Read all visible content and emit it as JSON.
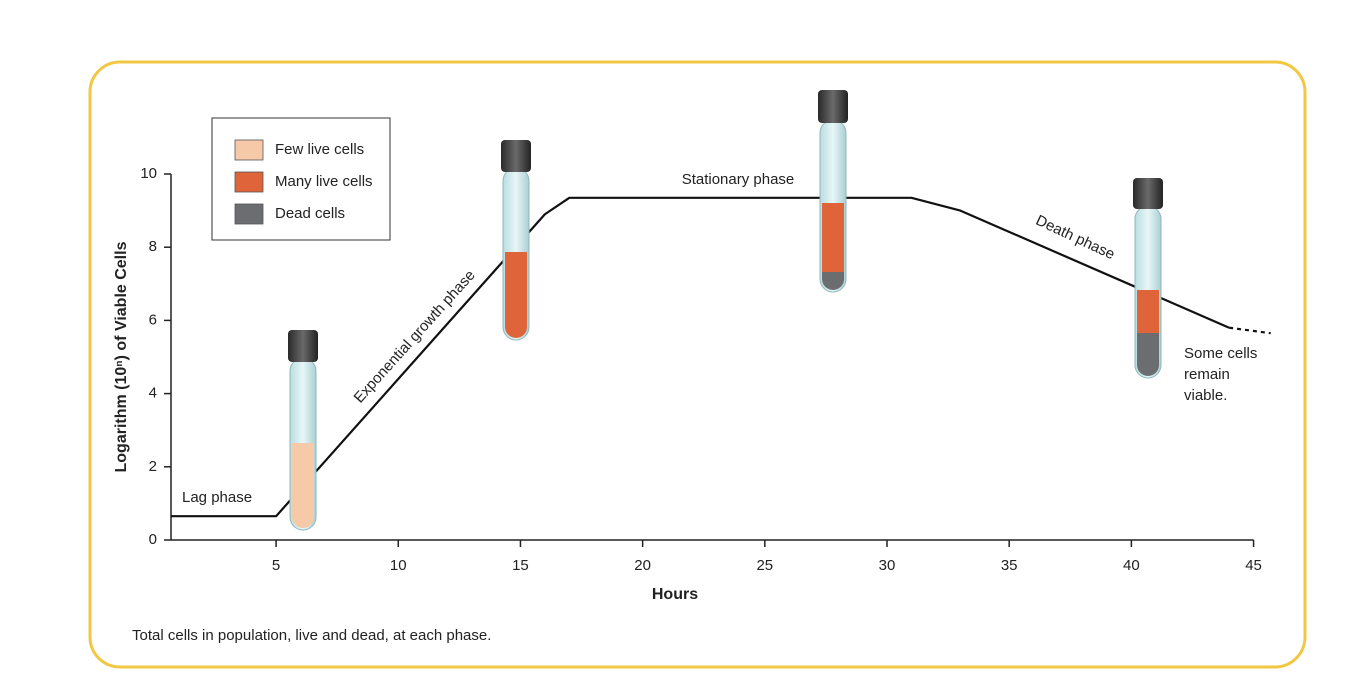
{
  "chart_data": {
    "type": "line",
    "x_label": "Hours",
    "y_label": "Logarithm (10ⁿ) of Viable Cells",
    "footnote": "Total cells in population, live and dead, at each phase.",
    "x": [
      0.7,
      5,
      16,
      17,
      31,
      33,
      44
    ],
    "values": [
      0.65,
      0.65,
      8.9,
      9.35,
      9.35,
      9.0,
      5.8
    ],
    "color": "#111111",
    "extension": {
      "x": [
        44,
        45.7
      ],
      "values": [
        5.8,
        5.65
      ],
      "style": "dashed"
    },
    "xlim": [
      0.7,
      46
    ],
    "ylim": [
      0,
      10
    ],
    "xticks": [
      5,
      10,
      15,
      20,
      25,
      30,
      35,
      40,
      45
    ],
    "yticks": [
      0,
      2,
      4,
      6,
      8,
      10
    ],
    "legend": [
      {
        "name": "Few live cells",
        "color": "#f6c9a9"
      },
      {
        "name": "Many live cells",
        "color": "#e0643a"
      },
      {
        "name": "Dead cells",
        "color": "#6c6d70"
      }
    ],
    "annotations": {
      "lag": "Lag phase",
      "exponential": "Exponential growth phase",
      "stationary": "Stationary phase",
      "death": "Death phase",
      "viable": [
        "Some cells",
        "remain",
        "viable."
      ]
    }
  }
}
